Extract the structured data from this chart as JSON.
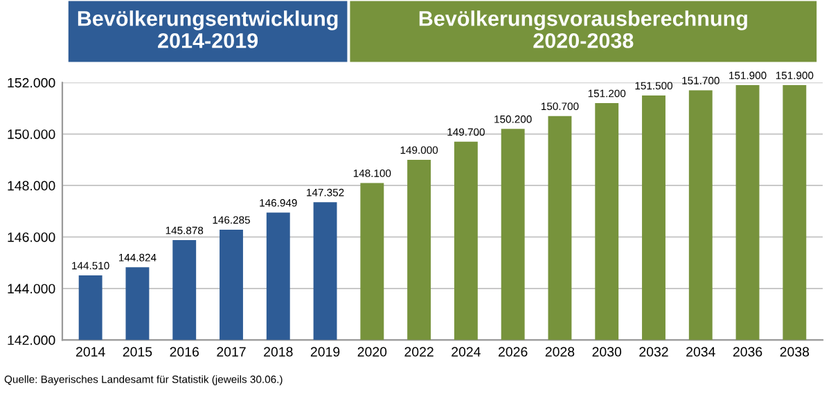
{
  "chart_data": {
    "type": "bar",
    "categories": [
      "2014",
      "2015",
      "2016",
      "2017",
      "2018",
      "2019",
      "2020",
      "2022",
      "2024",
      "2026",
      "2028",
      "2030",
      "2032",
      "2034",
      "2036",
      "2038"
    ],
    "values": [
      144510,
      144824,
      145878,
      146285,
      146949,
      147352,
      148100,
      149000,
      149700,
      150200,
      150700,
      151200,
      151500,
      151700,
      151900,
      151900
    ],
    "value_labels": [
      "144.510",
      "144.824",
      "145.878",
      "146.285",
      "146.949",
      "147.352",
      "148.100",
      "149.000",
      "149.700",
      "150.200",
      "150.700",
      "151.200",
      "151.500",
      "151.700",
      "151.900",
      "151.900"
    ],
    "colors": [
      "#2e5c96",
      "#2e5c96",
      "#2e5c96",
      "#2e5c96",
      "#2e5c96",
      "#2e5c96",
      "#77933c",
      "#77933c",
      "#77933c",
      "#77933c",
      "#77933c",
      "#77933c",
      "#77933c",
      "#77933c",
      "#77933c",
      "#77933c"
    ],
    "ylim": [
      142000,
      152000
    ],
    "yticks": [
      {
        "value": 142000,
        "label": "142.000"
      },
      {
        "value": 144000,
        "label": "144.000"
      },
      {
        "value": 146000,
        "label": "146.000"
      },
      {
        "value": 148000,
        "label": "148.000"
      },
      {
        "value": 150000,
        "label": "150.000"
      },
      {
        "value": 152000,
        "label": "152.000"
      }
    ],
    "grid": "y",
    "annotations": [
      "Bevölkerungsentwicklung\n2014-2019",
      "Bevölkerungsvorausberechnung\n2020-2038",
      "Quelle: Bayerisches Landesamt für Statistik (jeweils 30.06.)"
    ]
  }
}
